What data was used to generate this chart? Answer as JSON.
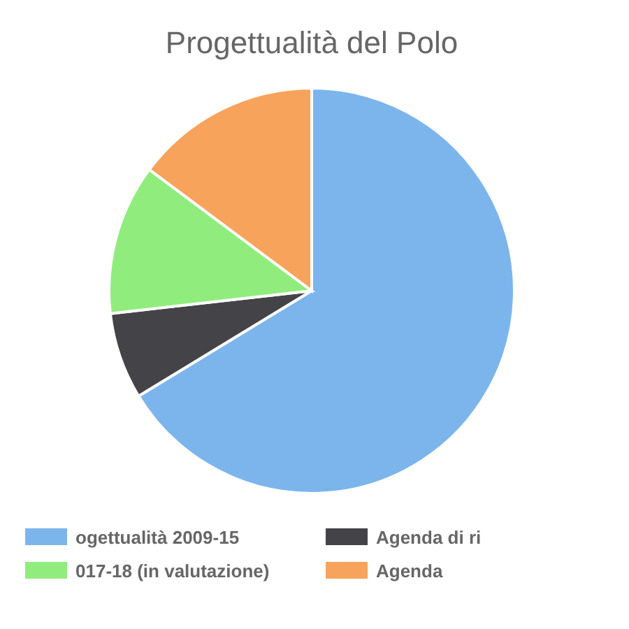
{
  "chart_data": {
    "type": "pie",
    "title": "Progettualità del Polo",
    "categories": [
      "ogettualità 2009-15",
      "Agenda di ri",
      "017-18 (in valutazione)",
      "Agenda"
    ],
    "values": [
      66.3,
      6.9,
      12.0,
      14.8
    ],
    "colors": [
      "#7cb5ec",
      "#434348",
      "#90ed7d",
      "#f7a35c"
    ],
    "legend": "bottom"
  }
}
